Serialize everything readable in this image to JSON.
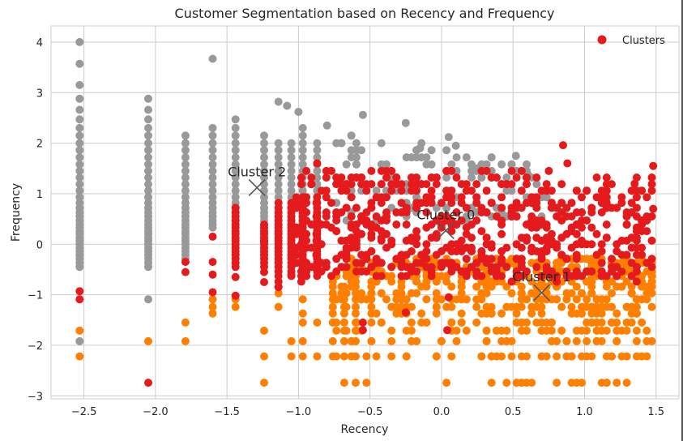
{
  "colors": {
    "cluster_0": "#e41a1c",
    "cluster_1": "#ff7f00",
    "cluster_2": "#999999",
    "grid": "#cccccc",
    "axes_bg": "#ffffff",
    "centroid_marker": "#555555"
  },
  "chart_data": {
    "type": "scatter",
    "title": "Customer Segmentation based on Recency and Frequency",
    "xlabel": "Recency",
    "ylabel": "Frequency",
    "xlim": [
      -2.73,
      1.66
    ],
    "ylim": [
      -3.06,
      4.32
    ],
    "x_ticks": [
      -2.5,
      -2.0,
      -1.5,
      -1.0,
      -0.5,
      0.0,
      0.5,
      1.0,
      1.5
    ],
    "x_tick_labels": [
      "−2.5",
      "−2.0",
      "−1.5",
      "−1.0",
      "−0.5",
      "0.0",
      "0.5",
      "1.0",
      "1.5"
    ],
    "y_ticks": [
      -3,
      -2,
      -1,
      0,
      1,
      2,
      3,
      4
    ],
    "y_tick_labels": [
      "−3",
      "−2",
      "−1",
      "0",
      "1",
      "2",
      "3",
      "4"
    ],
    "grid": true,
    "legend": {
      "position": "top-right",
      "entries": [
        "Clusters"
      ]
    },
    "frequency_levels": [
      -2.74,
      -2.22,
      -1.92,
      -1.71,
      -1.55,
      -1.37,
      -1.24,
      -1.09,
      -0.97,
      -0.84,
      -0.74,
      -0.63,
      -0.54,
      -0.45,
      -0.37,
      -0.29,
      -0.21,
      -0.14,
      -0.07,
      0.0,
      0.07,
      0.13,
      0.2,
      0.26,
      0.33,
      0.39,
      0.47,
      0.55,
      0.63,
      0.72,
      0.82,
      0.93,
      1.06,
      1.19,
      1.32,
      1.45,
      1.58,
      1.72,
      1.86,
      2.0,
      2.15,
      2.3,
      2.47,
      2.66,
      2.88,
      3.15,
      3.57,
      4.0
    ],
    "series": [
      {
        "name": "Cluster 0",
        "color": "#e41a1c",
        "region": {
          "x_range": [
            -1.05,
            1.48
          ],
          "y_range": [
            -0.7,
            1.45
          ],
          "x_center": 0.1,
          "y_center": 0.3
        },
        "sparse_points": [
          [
            -2.53,
            -0.93
          ],
          [
            -2.53,
            -1.09
          ],
          [
            -2.05,
            -2.74
          ],
          [
            -1.79,
            -0.35
          ],
          [
            -1.79,
            -0.55
          ],
          [
            -1.6,
            0.15
          ],
          [
            -1.6,
            -0.35
          ],
          [
            -1.6,
            -0.6
          ],
          [
            -1.6,
            -0.95
          ],
          [
            -1.44,
            0.47
          ],
          [
            -1.44,
            -0.2
          ],
          [
            -1.44,
            -0.65
          ],
          [
            -1.44,
            -1.02
          ],
          [
            -1.24,
            0.05
          ],
          [
            -1.24,
            -0.55
          ],
          [
            -1.24,
            -0.75
          ],
          [
            -1.14,
            -0.35
          ],
          [
            -1.14,
            -0.85
          ],
          [
            -1.05,
            0.0
          ],
          [
            -1.05,
            -0.6
          ],
          [
            -0.87,
            1.6
          ],
          [
            -0.55,
            -1.55
          ],
          [
            -0.55,
            -1.7
          ],
          [
            -0.25,
            -1.35
          ],
          [
            0.04,
            -1.7
          ],
          [
            0.05,
            -1.05
          ],
          [
            0.85,
            1.96
          ],
          [
            0.88,
            1.6
          ],
          [
            0.75,
            1.45
          ],
          [
            1.35,
            1.2
          ],
          [
            1.48,
            1.55
          ],
          [
            1.48,
            0.7
          ]
        ]
      },
      {
        "name": "Cluster 1",
        "color": "#ff7f00",
        "region": {
          "x_range": [
            -0.75,
            1.48
          ],
          "y_range": [
            -2.74,
            -0.25
          ],
          "x_center": 0.9,
          "y_center": -0.9
        },
        "sparse_points": [
          [
            -2.53,
            -1.71
          ],
          [
            -2.53,
            -2.22
          ],
          [
            -2.05,
            -1.92
          ],
          [
            -1.79,
            -1.55
          ],
          [
            -1.79,
            -1.92
          ],
          [
            -1.6,
            -1.09
          ],
          [
            -1.6,
            -1.24
          ],
          [
            -1.6,
            -1.37
          ],
          [
            -1.44,
            -1.09
          ],
          [
            -1.44,
            -1.24
          ],
          [
            -1.24,
            -1.71
          ],
          [
            -1.24,
            -2.22
          ],
          [
            -1.24,
            -2.74
          ],
          [
            -1.14,
            -0.54
          ],
          [
            -1.14,
            -0.97
          ],
          [
            -1.14,
            -1.24
          ],
          [
            -1.05,
            -1.92
          ],
          [
            -1.05,
            -2.22
          ],
          [
            -0.97,
            -1.09
          ],
          [
            -0.97,
            -1.37
          ],
          [
            -0.97,
            -1.55
          ],
          [
            -0.97,
            -1.92
          ],
          [
            -0.97,
            -2.22
          ],
          [
            -0.87,
            -1.55
          ],
          [
            -0.87,
            -2.22
          ],
          [
            -0.76,
            -1.92
          ],
          [
            -0.76,
            -2.22
          ]
        ]
      },
      {
        "name": "Cluster 2",
        "color": "#999999",
        "region": {
          "x_range": [
            -0.75,
            0.8
          ],
          "y_range": [
            0.5,
            2.6
          ],
          "x_center": -0.4,
          "y_center": 1.35
        },
        "sparse_points": [
          [
            -2.53,
            -1.92
          ],
          [
            -2.05,
            -1.09
          ],
          [
            -1.6,
            3.67
          ],
          [
            -1.14,
            2.82
          ],
          [
            -1.08,
            2.74
          ],
          [
            -1.0,
            2.62
          ],
          [
            -0.8,
            2.35
          ],
          [
            -0.55,
            2.56
          ],
          [
            -0.25,
            2.4
          ],
          [
            0.05,
            2.12
          ],
          [
            -0.15,
            1.9
          ],
          [
            0.1,
            1.95
          ],
          [
            0.25,
            1.5
          ],
          [
            0.52,
            1.75
          ],
          [
            0.6,
            1.4
          ]
        ]
      }
    ],
    "strip_columns": [
      {
        "x": -2.53,
        "cluster": "Cluster 2",
        "y_range": [
          -0.5,
          4.0
        ]
      },
      {
        "x": -2.05,
        "cluster": "Cluster 2",
        "y_range": [
          -0.5,
          2.9
        ]
      },
      {
        "x": -1.79,
        "cluster": "Cluster 2",
        "y_range": [
          -0.3,
          2.2
        ]
      },
      {
        "x": -1.6,
        "cluster": "Cluster 2",
        "y_range": [
          0.3,
          2.3
        ]
      },
      {
        "x": -1.44,
        "cluster": "Cluster 2",
        "y_range": [
          0.6,
          2.5
        ]
      },
      {
        "x": -1.24,
        "cluster": "Cluster 2",
        "y_range": [
          -0.3,
          2.2
        ]
      },
      {
        "x": -1.14,
        "cluster": "Cluster 2",
        "y_range": [
          0.2,
          2.1
        ]
      },
      {
        "x": -1.05,
        "cluster": "Cluster 2",
        "y_range": [
          0.1,
          2.1
        ]
      },
      {
        "x": -0.97,
        "cluster": "Cluster 2",
        "y_range": [
          0.5,
          2.4
        ]
      },
      {
        "x": -0.87,
        "cluster": "Cluster 2",
        "y_range": [
          0.6,
          2.1
        ]
      },
      {
        "x": -1.44,
        "cluster": "Cluster 0",
        "y_range": [
          -0.5,
          0.8
        ]
      },
      {
        "x": -1.24,
        "cluster": "Cluster 0",
        "y_range": [
          -0.5,
          0.4
        ]
      },
      {
        "x": -1.14,
        "cluster": "Cluster 0",
        "y_range": [
          -0.9,
          0.9
        ]
      },
      {
        "x": -1.05,
        "cluster": "Cluster 0",
        "y_range": [
          -0.7,
          0.9
        ]
      },
      {
        "x": -0.97,
        "cluster": "Cluster 0",
        "y_range": [
          -0.7,
          1.0
        ]
      },
      {
        "x": -0.87,
        "cluster": "Cluster 0",
        "y_range": [
          -0.7,
          1.0
        ]
      },
      {
        "x": -0.76,
        "cluster": "Cluster 1",
        "y_range": [
          -1.7,
          -0.7
        ]
      },
      {
        "x": -0.68,
        "cluster": "Cluster 1",
        "y_range": [
          -2.74,
          -0.8
        ]
      },
      {
        "x": -0.6,
        "cluster": "Cluster 1",
        "y_range": [
          -2.74,
          -0.6
        ]
      }
    ],
    "centroids": [
      {
        "name": "Cluster 0",
        "label": "Cluster 0",
        "x": 0.03,
        "y": 0.27
      },
      {
        "name": "Cluster 1",
        "label": "Cluster 1",
        "x": 0.7,
        "y": -0.96
      },
      {
        "name": "Cluster 2",
        "label": "Cluster 2",
        "x": -1.29,
        "y": 1.12
      }
    ]
  }
}
